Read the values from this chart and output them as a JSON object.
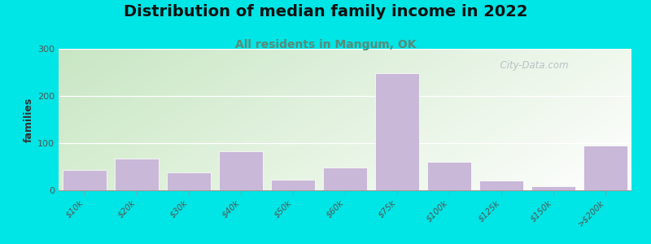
{
  "title": "Distribution of median family income in 2022",
  "subtitle": "All residents in Mangum, OK",
  "ylabel": "families",
  "categories": [
    "$10k",
    "$20k",
    "$30k",
    "$40k",
    "$50k",
    "$60k",
    "$75k",
    "$100k",
    "$125k",
    "$150k",
    ">$200k"
  ],
  "values": [
    43,
    68,
    38,
    83,
    23,
    48,
    248,
    60,
    20,
    8,
    95
  ],
  "bar_color": "#c9b8d8",
  "ylim": [
    0,
    300
  ],
  "yticks": [
    0,
    100,
    200,
    300
  ],
  "background_outer": "#00e5e5",
  "gradient_top_left": "#c8e6c4",
  "gradient_top_right": "#f0f4ec",
  "gradient_bottom_left": "#d8eed4",
  "gradient_bottom_right": "#ffffff",
  "title_fontsize": 14,
  "subtitle_fontsize": 10,
  "subtitle_color": "#5a8a7a",
  "watermark_text": "  City-Data.com",
  "watermark_color": "#b0b8c0"
}
